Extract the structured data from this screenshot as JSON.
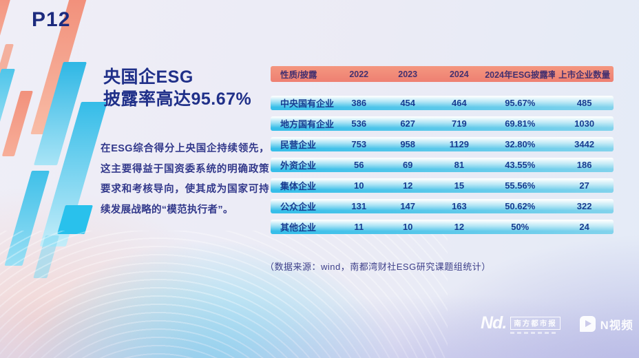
{
  "slide": {
    "page_label": "P12",
    "title_line1": "央国企ESG",
    "title_line2": "披露率高达95.67%",
    "body_text": "在ESG综合得分上央国企持续领先，这主要得益于国资委系统的明确政策要求和考核导向，使其成为国家可持续发展战略的“模范执行者”。",
    "source_note": "（数据来源：wind，南都湾财社ESG研究课题组统计）"
  },
  "chart_data": {
    "type": "table",
    "title": "央国企ESG披露率高达95.67%",
    "columns": [
      "性质/披露",
      "2022",
      "2023",
      "2024",
      "2024年ESG披露率",
      "上市企业数量"
    ],
    "rows": [
      [
        "中央国有企业",
        "386",
        "454",
        "464",
        "95.67%",
        "485"
      ],
      [
        "地方国有企业",
        "536",
        "627",
        "719",
        "69.81%",
        "1030"
      ],
      [
        "民营企业",
        "753",
        "958",
        "1129",
        "32.80%",
        "3442"
      ],
      [
        "外资企业",
        "56",
        "69",
        "81",
        "43.55%",
        "186"
      ],
      [
        "集体企业",
        "10",
        "12",
        "15",
        "55.56%",
        "27"
      ],
      [
        "公众企业",
        "131",
        "147",
        "163",
        "50.62%",
        "322"
      ],
      [
        "其他企业",
        "11",
        "10",
        "12",
        "50%",
        "24"
      ]
    ],
    "source": "（数据来源：wind，南都湾财社ESG研究课题组统计）"
  },
  "footer": {
    "brand_left_wordmark": "Nd.",
    "brand_left_name": "南方都市报",
    "brand_right_name": "N视频"
  },
  "colors": {
    "accent_salmon": "#F0897A",
    "accent_cyan": "#3BC0E9",
    "title_navy": "#203089",
    "row_text_navy": "#173C90",
    "header_text_purple": "#44306F",
    "background_lavender": "#ECEBF5"
  }
}
